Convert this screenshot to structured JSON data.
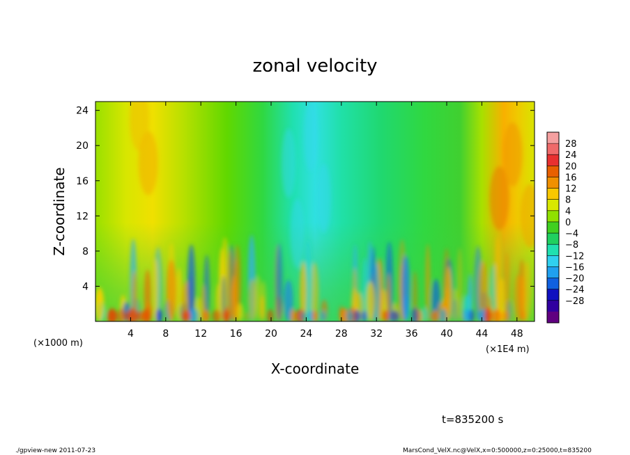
{
  "chart_data": {
    "type": "heatmap",
    "title": "zonal velocity",
    "xlabel": "X-coordinate",
    "ylabel": "Z-coordinate",
    "x_unit_left": "(×1000 m)",
    "x_unit_right": "(×1E4 m)",
    "x_ticks": [
      4,
      8,
      12,
      16,
      20,
      24,
      28,
      32,
      36,
      40,
      44,
      48
    ],
    "y_ticks": [
      4,
      8,
      12,
      16,
      20,
      24
    ],
    "xlim": [
      0,
      50
    ],
    "ylim": [
      0,
      25
    ],
    "colorbar": {
      "labels": [
        "28",
        "24",
        "20",
        "16",
        "12",
        "8",
        "4",
        "0",
        "−4",
        "−8",
        "−12",
        "−16",
        "−20",
        "−24",
        "−28"
      ],
      "colors": [
        "#f5a0a0",
        "#f06a6a",
        "#e83030",
        "#e86000",
        "#f09000",
        "#f8c800",
        "#d8e800",
        "#90e000",
        "#40d020",
        "#20d060",
        "#20e0b0",
        "#30d0f0",
        "#20a0f0",
        "#1060e0",
        "#1010c0",
        "#3000a0",
        "#600080"
      ]
    },
    "value_range": [
      -28,
      28
    ],
    "time_label": "t=835200 s",
    "footer_left": "./gpview-new   2011-07-23",
    "footer_right": "MarsCond_VelX.nc@VelX,x=0:500000,z=0:25000,t=835200"
  }
}
